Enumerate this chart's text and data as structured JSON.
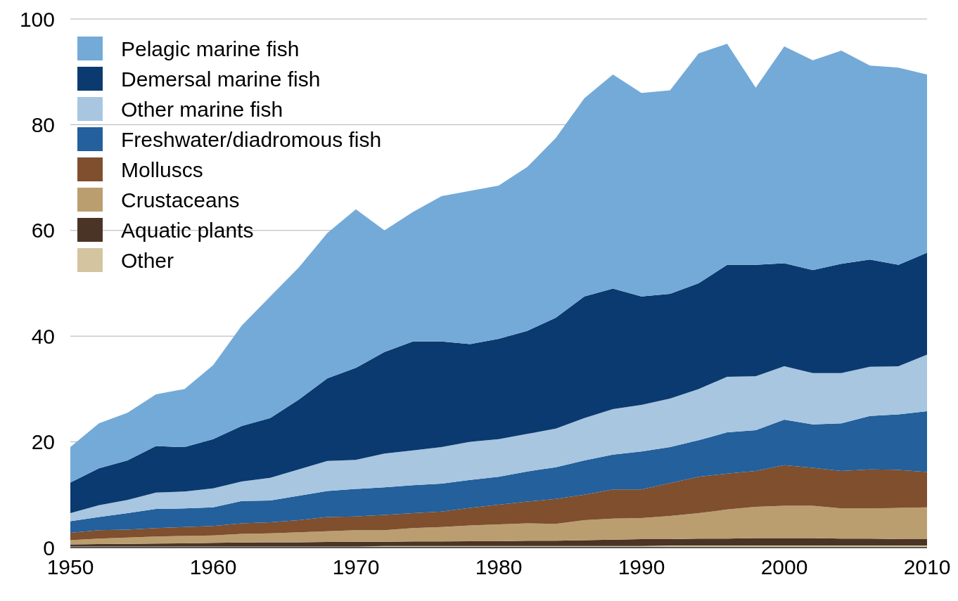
{
  "chart_data": {
    "type": "area",
    "stacked": true,
    "x": [
      1950,
      1952,
      1954,
      1956,
      1958,
      1960,
      1962,
      1964,
      1966,
      1968,
      1970,
      1972,
      1974,
      1976,
      1978,
      1980,
      1982,
      1984,
      1986,
      1988,
      1990,
      1992,
      1994,
      1996,
      1998,
      2000,
      2002,
      2004,
      2006,
      2008,
      2010
    ],
    "xlim": [
      1950,
      2010
    ],
    "xticks": [
      1950,
      1960,
      1970,
      1980,
      1990,
      2000,
      2010
    ],
    "ylim": [
      0,
      100
    ],
    "yticks": [
      0,
      20,
      40,
      60,
      80,
      100
    ],
    "grid": "y",
    "legend": "top left",
    "series": [
      {
        "name": "Other",
        "color": "#d5c4a0",
        "values": [
          0.2,
          0.2,
          0.2,
          0.2,
          0.2,
          0.2,
          0.2,
          0.2,
          0.2,
          0.2,
          0.2,
          0.3,
          0.3,
          0.3,
          0.3,
          0.3,
          0.3,
          0.3,
          0.3,
          0.3,
          0.3,
          0.4,
          0.4,
          0.4,
          0.4,
          0.4,
          0.4,
          0.4,
          0.4,
          0.4,
          0.4
        ]
      },
      {
        "name": "Aquatic plants",
        "color": "#4a3426",
        "values": [
          0.4,
          0.45,
          0.5,
          0.55,
          0.6,
          0.7,
          0.75,
          0.8,
          0.8,
          0.85,
          0.9,
          0.8,
          0.85,
          0.85,
          0.9,
          0.9,
          1.0,
          1.0,
          1.1,
          1.2,
          1.3,
          1.2,
          1.3,
          1.3,
          1.4,
          1.4,
          1.4,
          1.3,
          1.3,
          1.2,
          1.2
        ]
      },
      {
        "name": "Crustaceans",
        "color": "#bb9e70",
        "values": [
          0.8,
          1.05,
          1.2,
          1.35,
          1.4,
          1.4,
          1.65,
          1.7,
          1.9,
          2.05,
          2.2,
          2.2,
          2.55,
          2.75,
          3.0,
          3.2,
          3.3,
          3.2,
          3.8,
          4.0,
          4.0,
          4.4,
          4.8,
          5.5,
          5.9,
          6.1,
          6.1,
          5.7,
          5.7,
          5.9,
          6.0
        ]
      },
      {
        "name": "Molluscs",
        "color": "#7f4f2e",
        "values": [
          1.4,
          1.6,
          1.5,
          1.6,
          1.7,
          1.8,
          2.0,
          2.1,
          2.3,
          2.7,
          2.6,
          2.9,
          2.8,
          2.9,
          3.3,
          3.7,
          4.1,
          4.7,
          4.8,
          5.5,
          5.4,
          6.2,
          6.9,
          6.8,
          6.8,
          7.7,
          7.2,
          7.1,
          7.4,
          7.2,
          6.7
        ]
      },
      {
        "name": "Freshwater/diadromous fish",
        "color": "#23609c",
        "values": [
          2.2,
          2.5,
          3.1,
          3.6,
          3.5,
          3.5,
          4.2,
          4.1,
          4.6,
          4.9,
          5.2,
          5.2,
          5.3,
          5.3,
          5.3,
          5.3,
          5.7,
          6.0,
          6.5,
          6.6,
          7.2,
          6.8,
          6.9,
          7.8,
          7.7,
          8.6,
          8.2,
          9.0,
          10.1,
          10.5,
          11.5
        ]
      },
      {
        "name": "Other marine fish",
        "color": "#a8c6e0",
        "values": [
          1.5,
          2.2,
          2.5,
          3.1,
          3.2,
          3.6,
          3.7,
          4.3,
          5.0,
          5.7,
          5.5,
          6.4,
          6.6,
          6.9,
          7.2,
          7.1,
          7.1,
          7.3,
          8.0,
          8.6,
          8.8,
          9.2,
          9.7,
          10.5,
          10.2,
          10.1,
          9.7,
          9.5,
          9.3,
          9.1,
          10.7
        ]
      },
      {
        "name": "Demersal marine fish",
        "color": "#0b3a70",
        "values": [
          5.8,
          7.0,
          7.5,
          8.8,
          8.4,
          9.3,
          10.5,
          11.3,
          13.2,
          15.6,
          17.4,
          19.2,
          20.6,
          20.0,
          18.5,
          19.0,
          19.5,
          21.0,
          23.0,
          22.8,
          20.5,
          19.8,
          20.0,
          21.2,
          21.1,
          19.5,
          19.5,
          20.7,
          20.3,
          19.2,
          19.3
        ]
      },
      {
        "name": "Pelagic marine fish",
        "color": "#74aad8",
        "values": [
          6.7,
          8.5,
          9.0,
          9.8,
          11.0,
          14.0,
          19.0,
          23.0,
          25.0,
          27.5,
          30.0,
          23.0,
          24.5,
          27.5,
          29.0,
          29.0,
          31.0,
          34.0,
          37.5,
          40.5,
          38.5,
          38.5,
          43.5,
          41.8,
          33.5,
          41.0,
          39.7,
          40.3,
          36.7,
          37.3,
          33.7
        ]
      }
    ]
  }
}
